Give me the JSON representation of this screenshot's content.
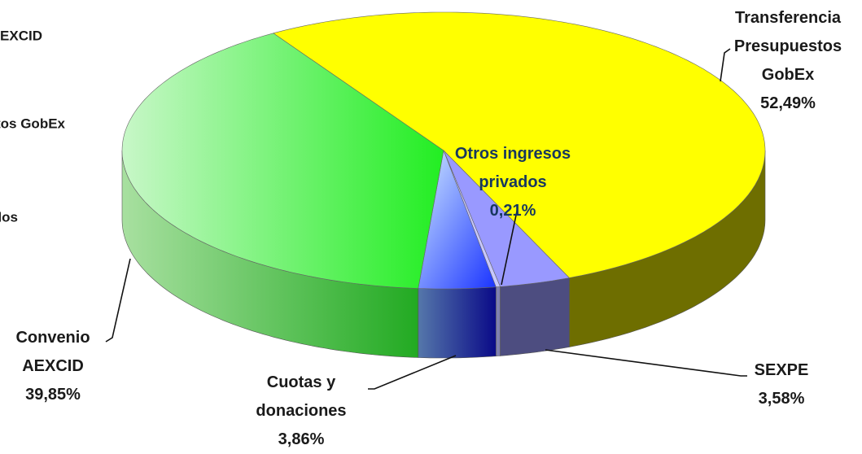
{
  "chart_data": {
    "type": "pie3d",
    "categories": [
      "Transferencia Presupuestos GobEx",
      "SEXPE",
      "Otros ingresos privados",
      "Cuotas y donaciones",
      "Convenio AEXCID"
    ],
    "values": [
      52.49,
      3.58,
      0.21,
      3.86,
      39.85
    ],
    "value_labels": [
      "52,49%",
      "3,58%",
      "0,21%",
      "3,86%",
      "39,85%"
    ],
    "colors": [
      "#ffff00",
      "#9999ff",
      "#c8c8ff",
      "#3355ff",
      "#33ee33"
    ],
    "legend": "left"
  }
}
